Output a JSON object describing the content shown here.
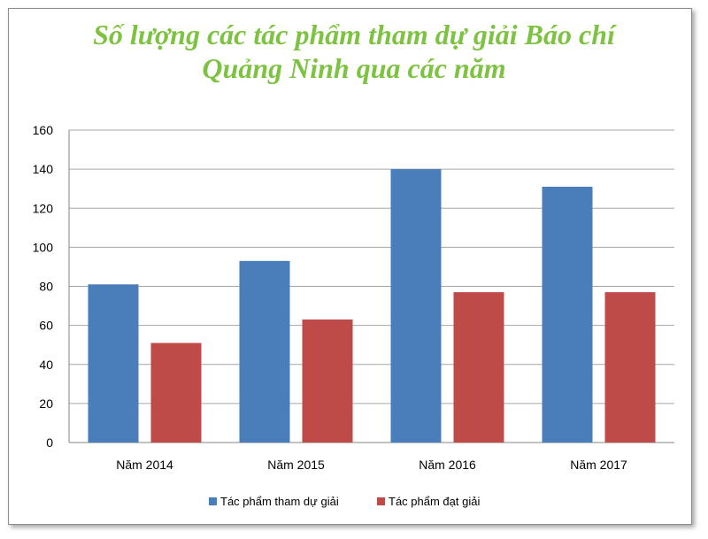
{
  "chart_data": {
    "type": "bar",
    "title_lines": [
      "Số lượng các tác phẩm tham dự giải Báo chí",
      "Quảng Ninh qua các năm"
    ],
    "categories": [
      "Năm 2014",
      "Năm 2015",
      "Năm 2016",
      "Năm 2017"
    ],
    "series": [
      {
        "name": "Tác phẩm tham dự giải",
        "color": "#4a7ebb",
        "values": [
          81,
          93,
          140,
          131
        ]
      },
      {
        "name": "Tác phẩm đạt giải",
        "color": "#be4b48",
        "values": [
          51,
          63,
          77,
          77
        ]
      }
    ],
    "yticks": [
      0,
      20,
      40,
      60,
      80,
      100,
      120,
      140,
      160
    ],
    "ylim": [
      0,
      160
    ],
    "grid": true,
    "legend_position": "bottom"
  }
}
